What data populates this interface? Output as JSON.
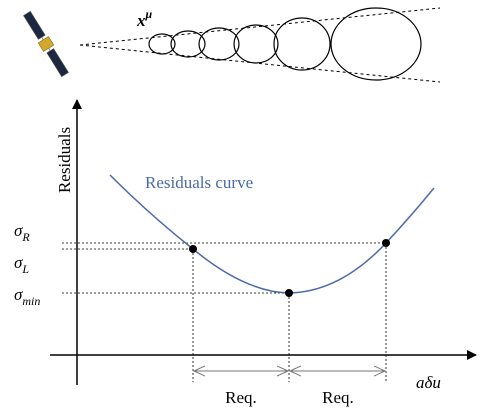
{
  "beam_label": {
    "base": "x",
    "sup": "μ"
  },
  "y_axis_label": "Residuals",
  "curve_label": "Residuals curve",
  "y_labels": [
    {
      "base": "σ",
      "sub": "R"
    },
    {
      "base": "σ",
      "sub": "L"
    },
    {
      "base": "σ",
      "sub": "min"
    }
  ],
  "x_axis_label": "aδu",
  "intervals": [
    "Req.",
    "Req."
  ]
}
